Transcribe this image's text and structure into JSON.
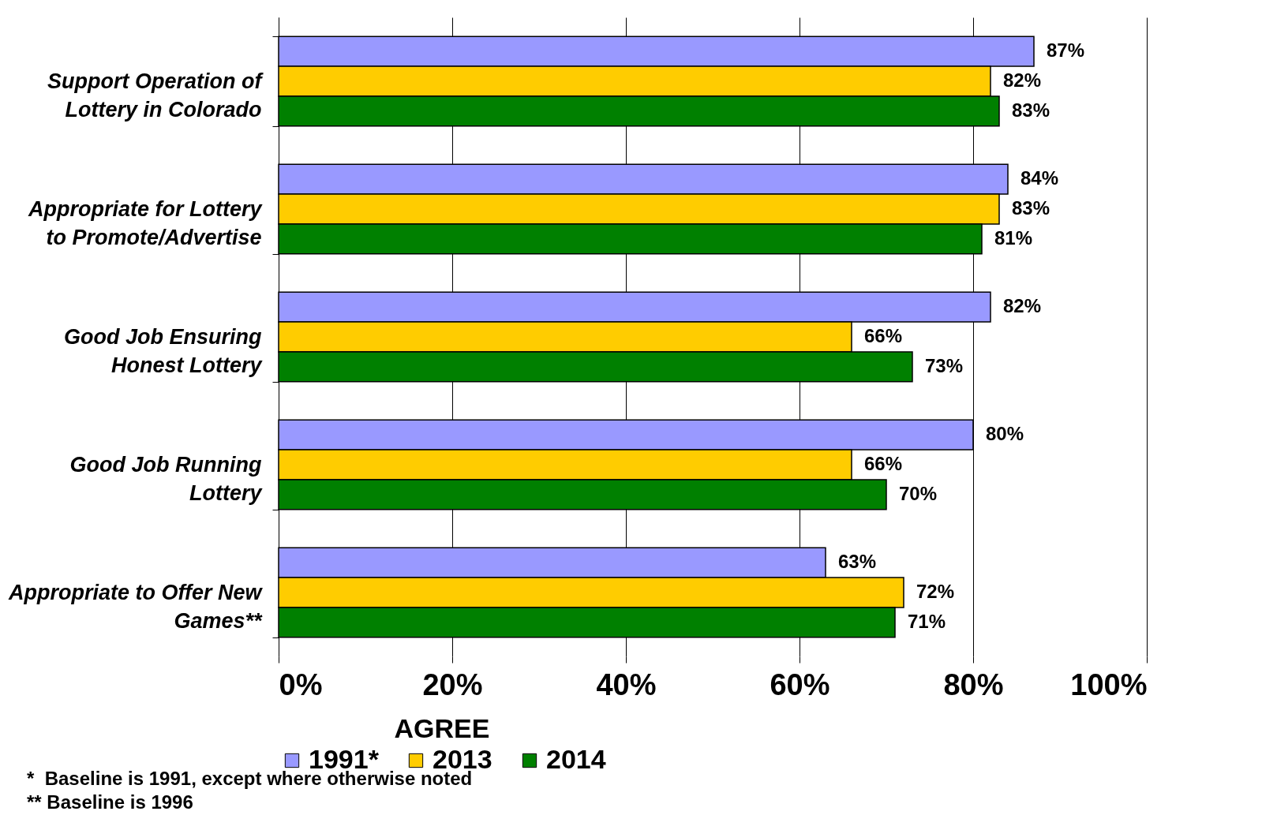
{
  "chart_data": {
    "type": "bar",
    "orientation": "horizontal",
    "categories": [
      "Support Operation of\nLottery in Colorado",
      "Appropriate for Lottery\nto Promote/Advertise",
      "Good Job Ensuring\nHonest Lottery",
      "Good Job Running\nLottery",
      "Appropriate to Offer New\nGames**"
    ],
    "series": [
      {
        "name": "1991*",
        "color": "#9999ff",
        "values": [
          87,
          84,
          82,
          80,
          63
        ],
        "value_labels": [
          "87%",
          "84%",
          "82%",
          "80%",
          "63%"
        ]
      },
      {
        "name": "2013",
        "color": "#ffcc00",
        "values": [
          82,
          83,
          66,
          66,
          72
        ],
        "value_labels": [
          "82%",
          "83%",
          "66%",
          "66%",
          "72%"
        ]
      },
      {
        "name": "2014",
        "color": "#008000",
        "values": [
          83,
          81,
          73,
          70,
          71
        ],
        "value_labels": [
          "83%",
          "81%",
          "73%",
          "70%",
          "71%"
        ]
      }
    ],
    "xlim": [
      0,
      100
    ],
    "xticks": [
      {
        "value": 0,
        "label": "0%"
      },
      {
        "value": 20,
        "label": "20%"
      },
      {
        "value": 40,
        "label": "40%"
      },
      {
        "value": 60,
        "label": "60%"
      },
      {
        "value": 80,
        "label": "80%"
      },
      {
        "value": 100,
        "label": "100%"
      }
    ],
    "grid": "x",
    "legend": "bottom",
    "legend_title": "AGREE",
    "annotations": [
      "*  Baseline is 1991, except where otherwise noted",
      "** Baseline is 1996"
    ]
  }
}
